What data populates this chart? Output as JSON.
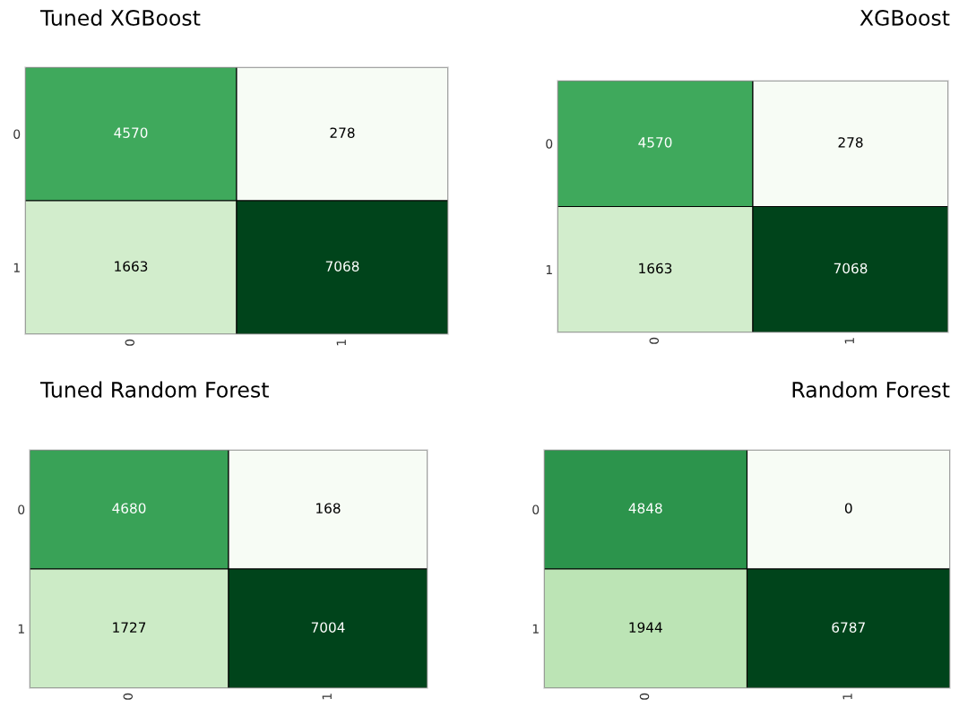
{
  "chart_data": [
    {
      "type": "heatmap",
      "title": "Tuned XGBoost",
      "categories": [
        "0",
        "1"
      ],
      "y_categories": [
        "0",
        "1"
      ],
      "cells": [
        [
          4570,
          278
        ],
        [
          1663,
          7068
        ]
      ],
      "data_labels": true
    },
    {
      "type": "heatmap",
      "title": "XGBoost",
      "categories": [
        "0",
        "1"
      ],
      "y_categories": [
        "0",
        "1"
      ],
      "cells": [
        [
          4570,
          278
        ],
        [
          1663,
          7068
        ]
      ],
      "data_labels": true
    },
    {
      "type": "heatmap",
      "title": "Tuned Random Forest",
      "categories": [
        "0",
        "1"
      ],
      "y_categories": [
        "0",
        "1"
      ],
      "cells": [
        [
          4680,
          168
        ],
        [
          1727,
          7004
        ]
      ],
      "data_labels": true
    },
    {
      "type": "heatmap",
      "title": "Random Forest",
      "categories": [
        "0",
        "1"
      ],
      "y_categories": [
        "0",
        "1"
      ],
      "cells": [
        [
          4848,
          0
        ],
        [
          1944,
          6787
        ]
      ],
      "data_labels": true
    }
  ]
}
